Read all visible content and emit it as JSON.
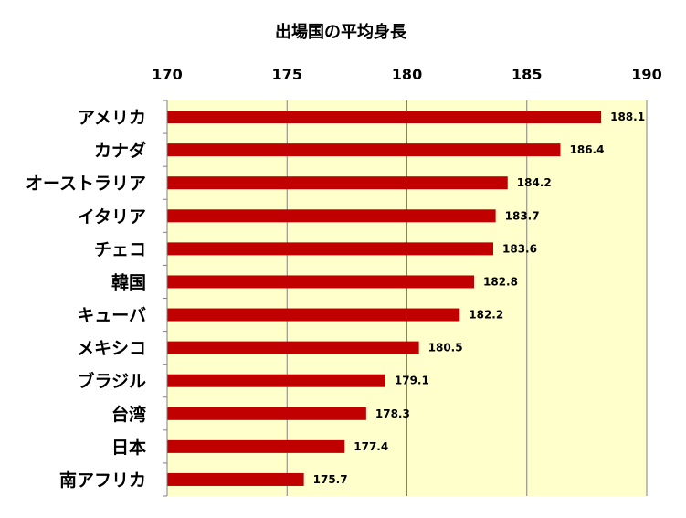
{
  "chart_data": {
    "type": "bar",
    "orientation": "horizontal",
    "title": "出場国の平均身長",
    "categories": [
      "アメリカ",
      "カナダ",
      "オーストラリア",
      "イタリア",
      "チェコ",
      "韓国",
      "キューバ",
      "メキシコ",
      "ブラジル",
      "台湾",
      "日本",
      "南アフリカ"
    ],
    "values": [
      188.1,
      186.4,
      184.2,
      183.7,
      183.6,
      182.8,
      182.2,
      180.5,
      179.1,
      178.3,
      177.4,
      175.7
    ],
    "value_labels": [
      "188.1",
      "186.4",
      "184.2",
      "183.7",
      "183.6",
      "182.8",
      "182.2",
      "180.5",
      "179.1",
      "178.3",
      "177.4",
      "175.7"
    ],
    "xlim": [
      170,
      190
    ],
    "ticks": [
      "170",
      "175",
      "180",
      "185",
      "190"
    ],
    "tick_values": [
      170,
      175,
      180,
      185,
      190
    ],
    "axis_position": "top",
    "grid": true,
    "legend": false,
    "colors": {
      "bar": "#C00000",
      "plot_background": "#FFFFCC",
      "gridline": "#808080"
    }
  }
}
